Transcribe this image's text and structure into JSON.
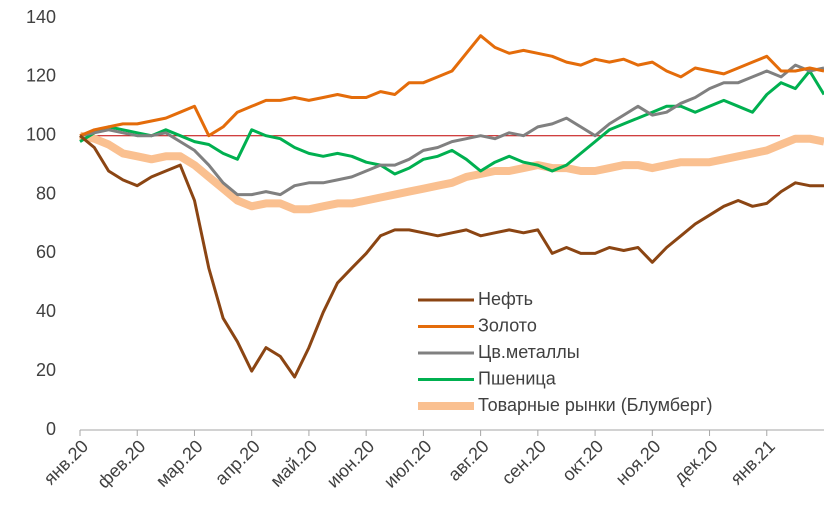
{
  "chart_data": {
    "type": "line",
    "categories": [
      "янв.20",
      null,
      null,
      null,
      "фев.20",
      null,
      null,
      null,
      "мар.20",
      null,
      null,
      null,
      "апр.20",
      null,
      null,
      null,
      "май.20",
      null,
      null,
      null,
      "июн.20",
      null,
      null,
      null,
      "июл.20",
      null,
      null,
      null,
      "авг.20",
      null,
      null,
      null,
      "сен.20",
      null,
      null,
      null,
      "окт.20",
      null,
      null,
      null,
      "ноя.20",
      null,
      null,
      null,
      "дек.20",
      null,
      null,
      null,
      "янв.21",
      null,
      null,
      null,
      null
    ],
    "series": [
      {
        "name": "Нефть",
        "color": "#8b4513",
        "width": 3,
        "values": [
          100,
          96,
          88,
          85,
          83,
          86,
          88,
          90,
          78,
          55,
          38,
          30,
          20,
          28,
          25,
          18,
          28,
          40,
          50,
          55,
          60,
          66,
          68,
          68,
          67,
          66,
          67,
          68,
          66,
          67,
          68,
          67,
          68,
          60,
          62,
          60,
          60,
          62,
          61,
          62,
          57,
          62,
          66,
          70,
          73,
          76,
          78,
          76,
          77,
          81,
          84,
          83,
          83
        ]
      },
      {
        "name": "Золото",
        "color": "#e46c0a",
        "width": 3,
        "values": [
          100,
          102,
          103,
          104,
          104,
          105,
          106,
          108,
          110,
          100,
          103,
          108,
          110,
          112,
          112,
          113,
          112,
          113,
          114,
          113,
          113,
          115,
          114,
          118,
          118,
          120,
          122,
          128,
          134,
          130,
          128,
          129,
          128,
          127,
          125,
          124,
          126,
          125,
          126,
          124,
          125,
          122,
          120,
          123,
          122,
          121,
          123,
          125,
          127,
          122,
          122,
          123,
          122
        ]
      },
      {
        "name": "Цв.металлы",
        "color": "#808080",
        "width": 3,
        "values": [
          100,
          101,
          102,
          101,
          100,
          100,
          101,
          98,
          95,
          90,
          84,
          80,
          80,
          81,
          80,
          83,
          84,
          84,
          85,
          86,
          88,
          90,
          90,
          92,
          95,
          96,
          98,
          99,
          100,
          99,
          101,
          100,
          103,
          104,
          106,
          103,
          100,
          104,
          107,
          110,
          107,
          108,
          111,
          113,
          116,
          118,
          118,
          120,
          122,
          120,
          124,
          122,
          123
        ]
      },
      {
        "name": "Пшеница",
        "color": "#00b050",
        "width": 3,
        "values": [
          98,
          101,
          103,
          102,
          101,
          100,
          102,
          100,
          98,
          97,
          94,
          92,
          102,
          100,
          99,
          96,
          94,
          93,
          94,
          93,
          91,
          90,
          87,
          89,
          92,
          93,
          95,
          92,
          88,
          91,
          93,
          91,
          90,
          88,
          90,
          94,
          98,
          102,
          104,
          106,
          108,
          110,
          110,
          108,
          110,
          112,
          110,
          108,
          114,
          118,
          116,
          122,
          114
        ]
      },
      {
        "name": "Товарные рынки (Блумберг)",
        "color": "#fac090",
        "width": 8,
        "values": [
          100,
          99,
          97,
          94,
          93,
          92,
          93,
          93,
          90,
          86,
          82,
          78,
          76,
          77,
          77,
          75,
          75,
          76,
          77,
          77,
          78,
          79,
          80,
          81,
          82,
          83,
          84,
          86,
          87,
          88,
          88,
          89,
          90,
          89,
          89,
          88,
          88,
          89,
          90,
          90,
          89,
          90,
          91,
          91,
          91,
          92,
          93,
          94,
          95,
          97,
          99,
          99,
          98
        ]
      }
    ],
    "hline": {
      "value": 100,
      "color": "#c00000"
    },
    "ylim": [
      0,
      140
    ],
    "yticks": [
      0,
      20,
      40,
      60,
      80,
      100,
      120,
      140
    ],
    "grid": false,
    "legend_position": "bottom"
  }
}
